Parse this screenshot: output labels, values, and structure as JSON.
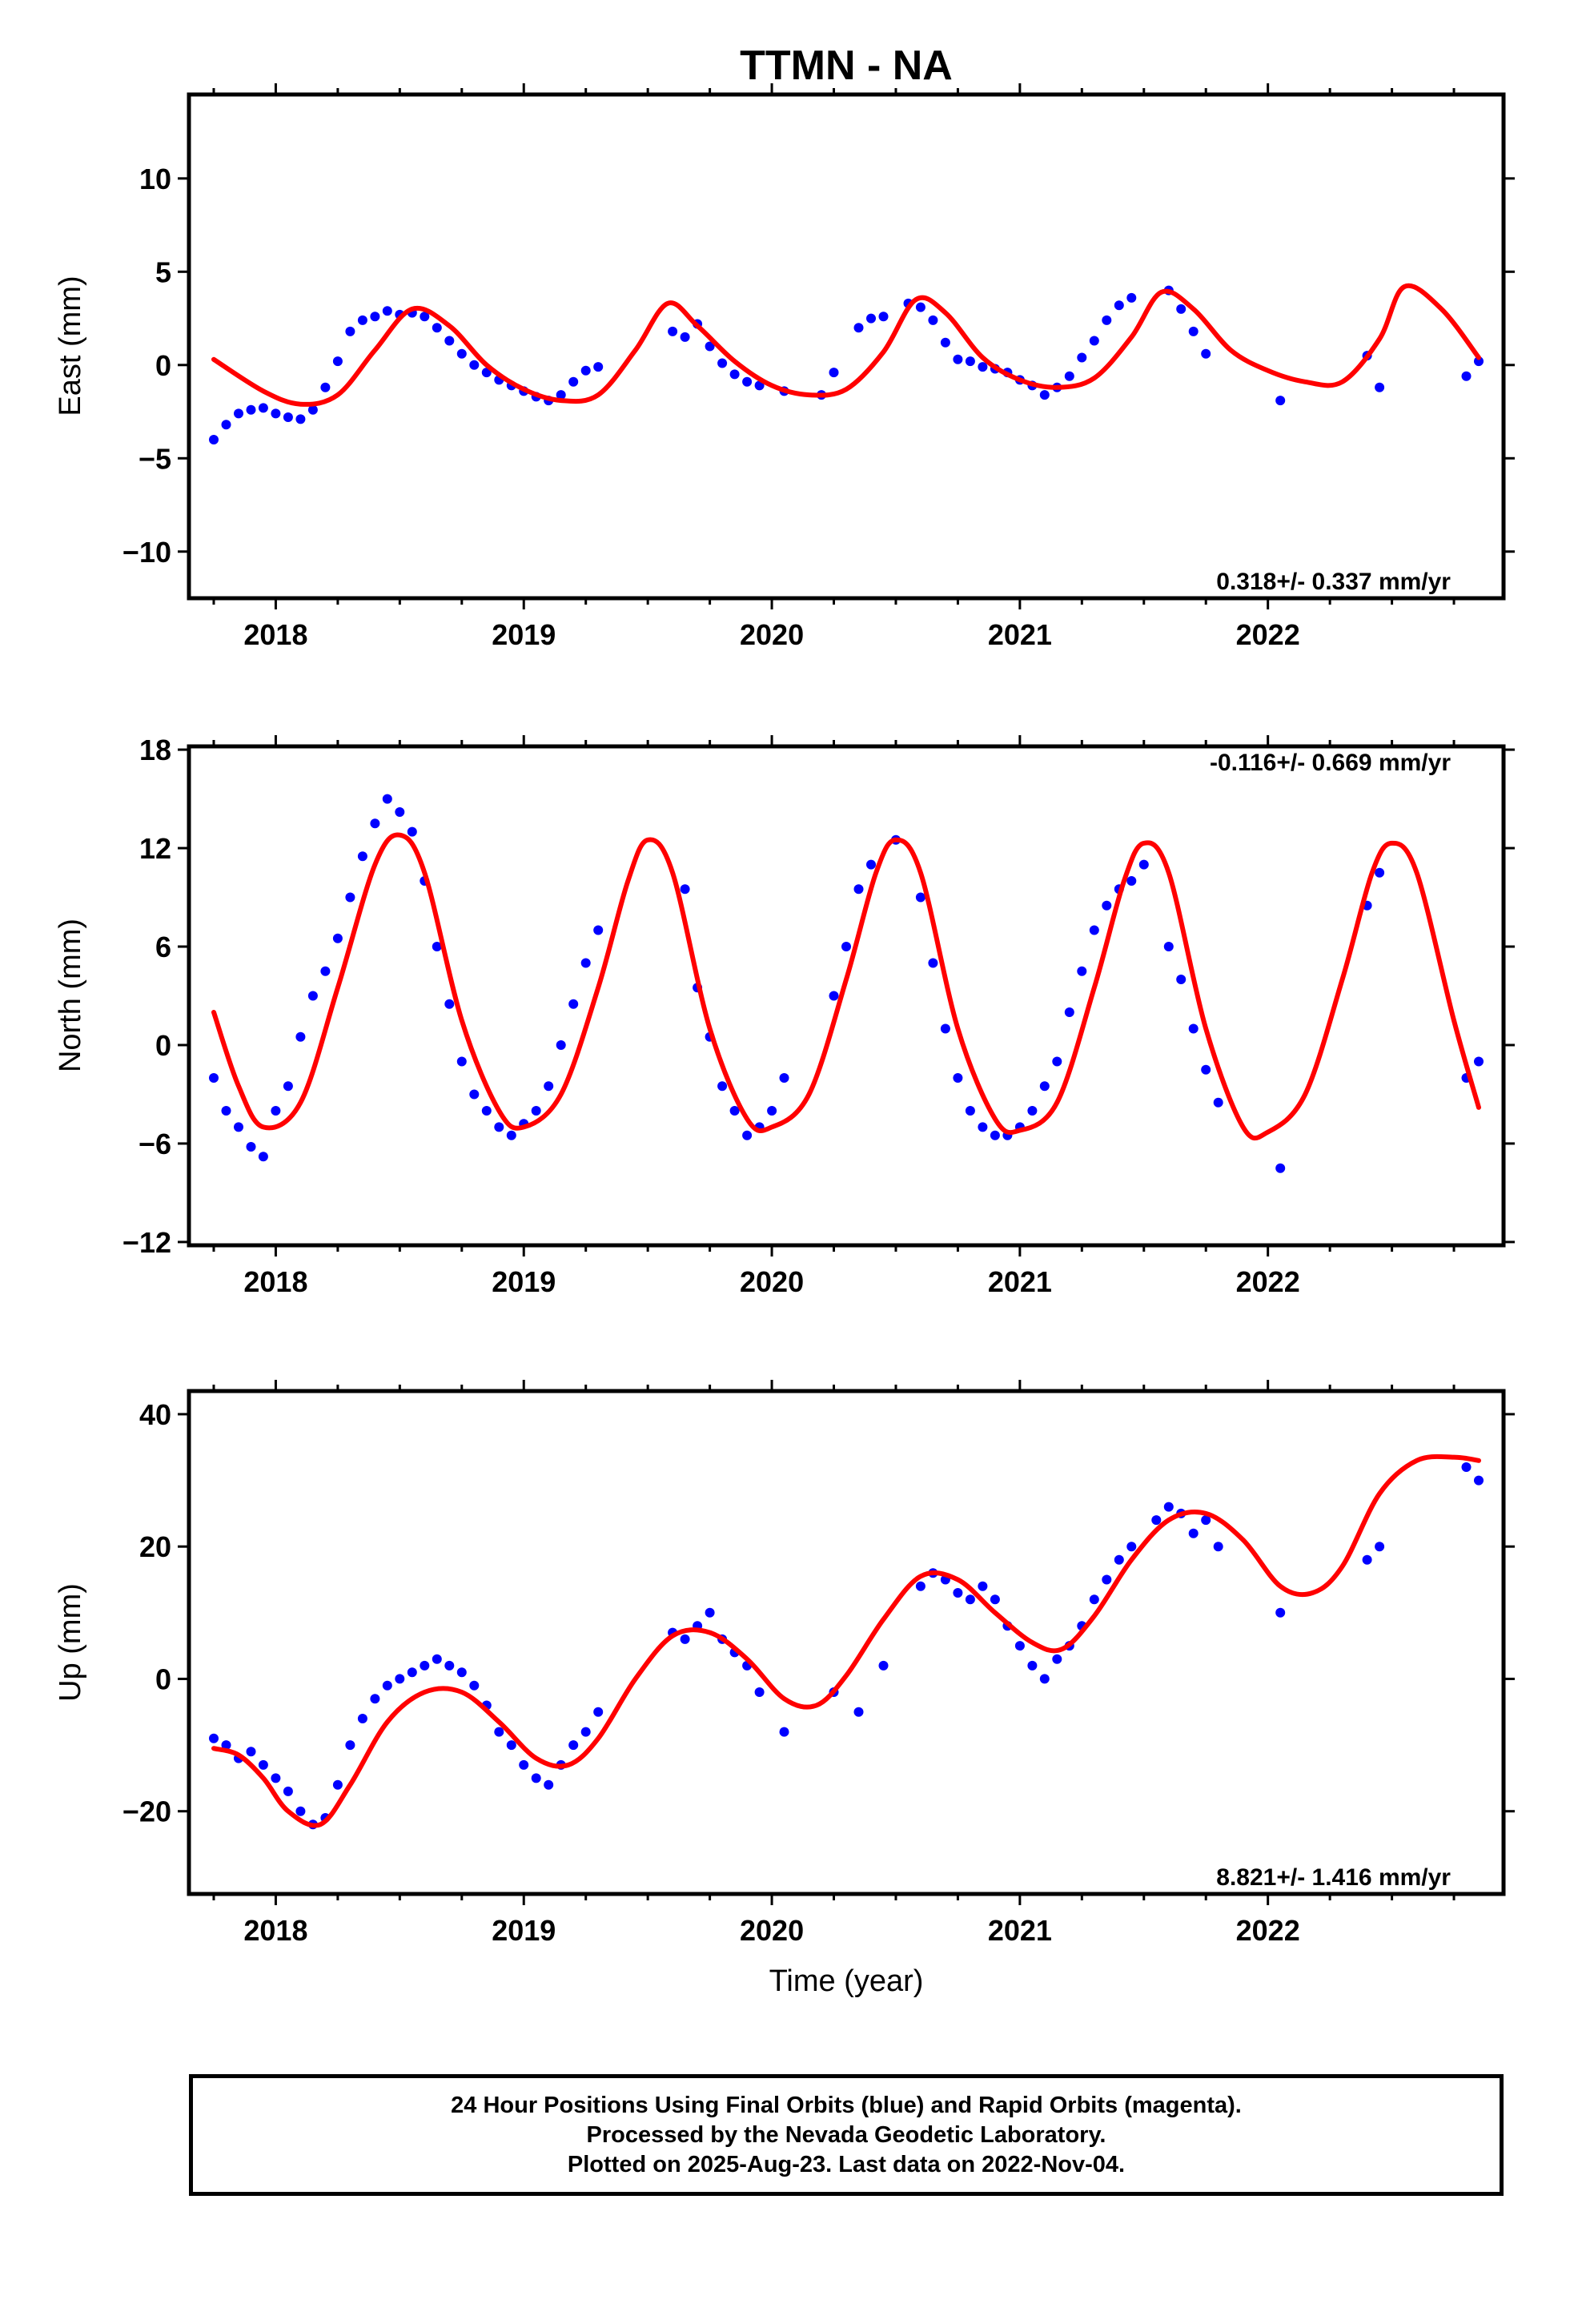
{
  "figure": {
    "title": "TTMN - NA",
    "xlabel": "Time (year)",
    "footer": [
      "24 Hour Positions Using Final Orbits (blue) and Rapid Orbits (magenta).",
      "Processed by the Nevada Geodetic Laboratory.",
      "Plotted on 2025-Aug-23. Last data on 2022-Nov-04."
    ]
  },
  "colors": {
    "data": "#0000ff",
    "fit": "#ff0000",
    "frame": "#000000"
  },
  "chart_data": [
    {
      "type": "scatter",
      "ylabel": "East (mm)",
      "rate": "0.318+/- 0.337 mm/yr",
      "rate_position": "bottom-right",
      "xlim": [
        2017.65,
        2022.95
      ],
      "ylim": [
        -12.5,
        14.5
      ],
      "xticks": [
        2018,
        2019,
        2020,
        2021,
        2022
      ],
      "yticks": [
        -10,
        -5,
        0,
        5,
        10
      ],
      "grid": false,
      "series": [
        {
          "kind": "scatter",
          "x": [
            2017.75,
            2017.8,
            2017.85,
            2017.9,
            2017.95,
            2018.0,
            2018.05,
            2018.1,
            2018.15,
            2018.2,
            2018.25,
            2018.3,
            2018.35,
            2018.4,
            2018.45,
            2018.5,
            2018.55,
            2018.6,
            2018.65,
            2018.7,
            2018.75,
            2018.8,
            2018.85,
            2018.9,
            2018.95,
            2019.0,
            2019.05,
            2019.1,
            2019.15,
            2019.2,
            2019.25,
            2019.3,
            2019.6,
            2019.65,
            2019.7,
            2019.75,
            2019.8,
            2019.85,
            2019.9,
            2019.95,
            2020.05,
            2020.2,
            2020.25,
            2020.35,
            2020.4,
            2020.45,
            2020.55,
            2020.6,
            2020.65,
            2020.7,
            2020.75,
            2020.8,
            2020.85,
            2020.9,
            2020.95,
            2021.0,
            2021.05,
            2021.1,
            2021.15,
            2021.2,
            2021.25,
            2021.3,
            2021.35,
            2021.4,
            2021.45,
            2021.6,
            2021.65,
            2021.7,
            2021.75,
            2022.05,
            2022.4,
            2022.45,
            2022.8,
            2022.85
          ],
          "y": [
            -4.0,
            -3.2,
            -2.6,
            -2.4,
            -2.3,
            -2.6,
            -2.8,
            -2.9,
            -2.4,
            -1.2,
            0.2,
            1.8,
            2.4,
            2.6,
            2.9,
            2.7,
            2.8,
            2.6,
            2.0,
            1.3,
            0.6,
            0.0,
            -0.4,
            -0.8,
            -1.1,
            -1.4,
            -1.7,
            -1.9,
            -1.6,
            -0.9,
            -0.3,
            -0.1,
            1.8,
            1.5,
            2.2,
            1.0,
            0.1,
            -0.5,
            -0.9,
            -1.1,
            -1.4,
            -1.6,
            -0.4,
            2.0,
            2.5,
            2.6,
            3.3,
            3.1,
            2.4,
            1.2,
            0.3,
            0.2,
            -0.1,
            -0.2,
            -0.4,
            -0.8,
            -1.1,
            -1.6,
            -1.2,
            -0.6,
            0.4,
            1.3,
            2.4,
            3.2,
            3.6,
            4.0,
            3.0,
            1.8,
            0.6,
            -1.9,
            0.5,
            -1.2,
            -0.6,
            0.2
          ]
        },
        {
          "kind": "line",
          "x": [
            2017.75,
            2017.95,
            2018.1,
            2018.25,
            2018.4,
            2018.55,
            2018.7,
            2018.85,
            2019.0,
            2019.15,
            2019.3,
            2019.45,
            2019.58,
            2019.7,
            2019.85,
            2020.0,
            2020.15,
            2020.3,
            2020.45,
            2020.58,
            2020.7,
            2020.85,
            2021.0,
            2021.15,
            2021.3,
            2021.45,
            2021.57,
            2021.7,
            2021.85,
            2022.0,
            2022.15,
            2022.3,
            2022.45,
            2022.55,
            2022.7,
            2022.85
          ],
          "y": [
            0.3,
            -1.4,
            -2.1,
            -1.6,
            0.8,
            3.0,
            2.1,
            0.0,
            -1.3,
            -1.9,
            -1.6,
            0.8,
            3.3,
            2.1,
            0.2,
            -1.1,
            -1.6,
            -1.3,
            0.7,
            3.5,
            2.8,
            0.4,
            -0.8,
            -1.2,
            -0.7,
            1.5,
            3.9,
            3.0,
            0.8,
            -0.3,
            -0.9,
            -0.9,
            1.4,
            4.2,
            3.0,
            0.4
          ]
        }
      ]
    },
    {
      "type": "scatter",
      "ylabel": "North (mm)",
      "rate": "-0.116+/- 0.669 mm/yr",
      "rate_position": "top-right",
      "xlim": [
        2017.65,
        2022.95
      ],
      "ylim": [
        -12.2,
        18.2
      ],
      "xticks": [
        2018,
        2019,
        2020,
        2021,
        2022
      ],
      "yticks": [
        -12,
        -6,
        0,
        6,
        12,
        18
      ],
      "grid": false,
      "series": [
        {
          "kind": "scatter",
          "x": [
            2017.75,
            2017.8,
            2017.85,
            2017.9,
            2017.95,
            2018.0,
            2018.05,
            2018.1,
            2018.15,
            2018.2,
            2018.25,
            2018.3,
            2018.35,
            2018.4,
            2018.45,
            2018.5,
            2018.55,
            2018.6,
            2018.65,
            2018.7,
            2018.75,
            2018.8,
            2018.85,
            2018.9,
            2018.95,
            2019.0,
            2019.05,
            2019.1,
            2019.15,
            2019.2,
            2019.25,
            2019.3,
            2019.65,
            2019.7,
            2019.75,
            2019.8,
            2019.85,
            2019.9,
            2019.95,
            2020.0,
            2020.05,
            2020.25,
            2020.3,
            2020.35,
            2020.4,
            2020.5,
            2020.6,
            2020.65,
            2020.7,
            2020.75,
            2020.8,
            2020.85,
            2020.9,
            2020.95,
            2021.0,
            2021.05,
            2021.1,
            2021.15,
            2021.2,
            2021.25,
            2021.3,
            2021.35,
            2021.4,
            2021.45,
            2021.5,
            2021.6,
            2021.65,
            2021.7,
            2021.75,
            2021.8,
            2022.05,
            2022.4,
            2022.45,
            2022.8,
            2022.85
          ],
          "y": [
            -2.0,
            -4.0,
            -5.0,
            -6.2,
            -6.8,
            -4.0,
            -2.5,
            0.5,
            3.0,
            4.5,
            6.5,
            9.0,
            11.5,
            13.5,
            15.0,
            14.2,
            13.0,
            10.0,
            6.0,
            2.5,
            -1.0,
            -3.0,
            -4.0,
            -5.0,
            -5.5,
            -4.8,
            -4.0,
            -2.5,
            0.0,
            2.5,
            5.0,
            7.0,
            9.5,
            3.5,
            0.5,
            -2.5,
            -4.0,
            -5.5,
            -5.0,
            -4.0,
            -2.0,
            3.0,
            6.0,
            9.5,
            11.0,
            12.5,
            9.0,
            5.0,
            1.0,
            -2.0,
            -4.0,
            -5.0,
            -5.5,
            -5.5,
            -5.0,
            -4.0,
            -2.5,
            -1.0,
            2.0,
            4.5,
            7.0,
            8.5,
            9.5,
            10.0,
            11.0,
            6.0,
            4.0,
            1.0,
            -1.5,
            -3.5,
            -7.5,
            8.5,
            10.5,
            -2.0,
            -1.0
          ]
        },
        {
          "kind": "line",
          "x": [
            2017.75,
            2017.85,
            2017.95,
            2018.1,
            2018.25,
            2018.4,
            2018.5,
            2018.6,
            2018.75,
            2018.9,
            2019.0,
            2019.15,
            2019.3,
            2019.42,
            2019.5,
            2019.6,
            2019.75,
            2019.9,
            2020.0,
            2020.15,
            2020.3,
            2020.42,
            2020.5,
            2020.6,
            2020.75,
            2020.9,
            2021.0,
            2021.15,
            2021.3,
            2021.42,
            2021.5,
            2021.6,
            2021.75,
            2021.9,
            2022.0,
            2022.15,
            2022.3,
            2022.42,
            2022.5,
            2022.6,
            2022.75,
            2022.85
          ],
          "y": [
            2.0,
            -2.5,
            -5.0,
            -3.5,
            3.5,
            11.0,
            12.8,
            10.5,
            1.5,
            -4.0,
            -5.0,
            -3.0,
            3.5,
            10.0,
            12.5,
            10.5,
            1.0,
            -4.5,
            -5.0,
            -3.0,
            4.0,
            10.5,
            12.5,
            10.5,
            1.0,
            -4.5,
            -5.2,
            -3.5,
            3.5,
            10.0,
            12.3,
            10.5,
            1.0,
            -5.0,
            -5.3,
            -3.0,
            4.0,
            10.5,
            12.3,
            10.5,
            1.5,
            -3.8
          ]
        }
      ]
    },
    {
      "type": "scatter",
      "ylabel": "Up (mm)",
      "rate": "8.821+/- 1.416 mm/yr",
      "rate_position": "bottom-right",
      "xlim": [
        2017.65,
        2022.95
      ],
      "ylim": [
        -32.5,
        43.5
      ],
      "xticks": [
        2018,
        2019,
        2020,
        2021,
        2022
      ],
      "yticks": [
        -20,
        0,
        20,
        40
      ],
      "grid": false,
      "series": [
        {
          "kind": "scatter",
          "x": [
            2017.75,
            2017.8,
            2017.85,
            2017.9,
            2017.95,
            2018.0,
            2018.05,
            2018.1,
            2018.15,
            2018.2,
            2018.25,
            2018.3,
            2018.35,
            2018.4,
            2018.45,
            2018.5,
            2018.55,
            2018.6,
            2018.65,
            2018.7,
            2018.75,
            2018.8,
            2018.85,
            2018.9,
            2018.95,
            2019.0,
            2019.05,
            2019.1,
            2019.15,
            2019.2,
            2019.25,
            2019.3,
            2019.6,
            2019.65,
            2019.7,
            2019.75,
            2019.8,
            2019.85,
            2019.9,
            2019.95,
            2020.05,
            2020.25,
            2020.35,
            2020.45,
            2020.6,
            2020.65,
            2020.7,
            2020.75,
            2020.8,
            2020.85,
            2020.9,
            2020.95,
            2021.0,
            2021.05,
            2021.1,
            2021.15,
            2021.2,
            2021.25,
            2021.3,
            2021.35,
            2021.4,
            2021.45,
            2021.55,
            2021.6,
            2021.65,
            2021.7,
            2021.75,
            2021.8,
            2022.05,
            2022.4,
            2022.45,
            2022.8,
            2022.85
          ],
          "y": [
            -9.0,
            -10.0,
            -12.0,
            -11.0,
            -13.0,
            -15.0,
            -17.0,
            -20.0,
            -22.0,
            -21.0,
            -16.0,
            -10.0,
            -6.0,
            -3.0,
            -1.0,
            0.0,
            1.0,
            2.0,
            3.0,
            2.0,
            1.0,
            -1.0,
            -4.0,
            -8.0,
            -10.0,
            -13.0,
            -15.0,
            -16.0,
            -13.0,
            -10.0,
            -8.0,
            -5.0,
            7.0,
            6.0,
            8.0,
            10.0,
            6.0,
            4.0,
            2.0,
            -2.0,
            -8.0,
            -2.0,
            -5.0,
            2.0,
            14.0,
            16.0,
            15.0,
            13.0,
            12.0,
            14.0,
            12.0,
            8.0,
            5.0,
            2.0,
            0.0,
            3.0,
            5.0,
            8.0,
            12.0,
            15.0,
            18.0,
            20.0,
            24.0,
            26.0,
            25.0,
            22.0,
            24.0,
            20.0,
            10.0,
            18.0,
            20.0,
            32.0,
            30.0
          ]
        },
        {
          "kind": "line",
          "x": [
            2017.75,
            2017.85,
            2017.95,
            2018.05,
            2018.18,
            2018.3,
            2018.45,
            2018.6,
            2018.75,
            2018.9,
            2019.05,
            2019.18,
            2019.3,
            2019.45,
            2019.6,
            2019.75,
            2019.9,
            2020.05,
            2020.18,
            2020.3,
            2020.45,
            2020.6,
            2020.75,
            2020.9,
            2021.05,
            2021.17,
            2021.3,
            2021.45,
            2021.6,
            2021.75,
            2021.9,
            2022.05,
            2022.18,
            2022.3,
            2022.45,
            2022.6,
            2022.75,
            2022.85
          ],
          "y": [
            -10.5,
            -11.5,
            -15.0,
            -20.0,
            -22.0,
            -16.0,
            -6.5,
            -2.0,
            -2.0,
            -6.5,
            -12.0,
            -13.0,
            -9.0,
            0.0,
            6.5,
            7.0,
            3.0,
            -3.0,
            -4.0,
            0.5,
            9.0,
            15.5,
            15.0,
            10.0,
            5.5,
            4.5,
            9.5,
            18.0,
            24.0,
            25.0,
            21.0,
            14.0,
            13.0,
            17.0,
            28.0,
            33.0,
            33.5,
            33.0
          ]
        }
      ]
    }
  ]
}
